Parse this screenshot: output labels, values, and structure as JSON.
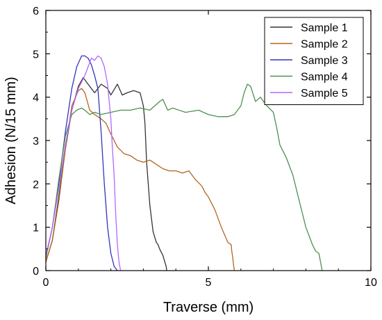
{
  "chart_data": {
    "type": "line",
    "xlabel": "Traverse (mm)",
    "ylabel": "Adhesion (N/15 mm)",
    "xlim": [
      0,
      10
    ],
    "ylim": [
      0,
      6
    ],
    "xticks": [
      0,
      5,
      10
    ],
    "yticks": [
      0,
      1,
      2,
      3,
      4,
      5,
      6
    ],
    "grid": false,
    "legend_position": "top-right",
    "series": [
      {
        "name": "Sample 1",
        "color": "#333333",
        "x": [
          0,
          0.2,
          0.4,
          0.6,
          0.8,
          1.0,
          1.15,
          1.3,
          1.5,
          1.7,
          1.9,
          2.0,
          2.2,
          2.35,
          2.5,
          2.7,
          2.9,
          3.0,
          3.05,
          3.1,
          3.2,
          3.3,
          3.4,
          3.45,
          3.5,
          3.6,
          3.7,
          3.72
        ],
        "y": [
          0.2,
          0.7,
          1.7,
          2.8,
          3.7,
          4.25,
          4.45,
          4.3,
          4.1,
          4.3,
          4.2,
          4.05,
          4.3,
          4.05,
          4.1,
          4.15,
          4.1,
          3.8,
          3.4,
          2.5,
          1.5,
          0.9,
          0.65,
          0.6,
          0.5,
          0.35,
          0.1,
          0.0
        ]
      },
      {
        "name": "Sample 2",
        "color": "#b5651d",
        "x": [
          0,
          0.2,
          0.4,
          0.6,
          0.8,
          1.0,
          1.1,
          1.2,
          1.35,
          1.5,
          1.7,
          1.85,
          2.0,
          2.2,
          2.4,
          2.6,
          2.8,
          3.0,
          3.2,
          3.4,
          3.6,
          3.8,
          4.0,
          4.2,
          4.4,
          4.6,
          4.8,
          4.9,
          5.0,
          5.2,
          5.4,
          5.6,
          5.7,
          5.72,
          5.75,
          5.78,
          5.8
        ],
        "y": [
          0.2,
          0.7,
          1.6,
          2.8,
          3.8,
          4.15,
          4.2,
          4.1,
          3.7,
          3.6,
          3.5,
          3.4,
          3.15,
          2.85,
          2.7,
          2.65,
          2.55,
          2.5,
          2.55,
          2.45,
          2.35,
          2.3,
          2.3,
          2.25,
          2.3,
          2.1,
          1.95,
          1.8,
          1.7,
          1.4,
          1.0,
          0.65,
          0.6,
          0.45,
          0.3,
          0.1,
          0.0
        ]
      },
      {
        "name": "Sample 3",
        "color": "#3333bb",
        "x": [
          0,
          0.2,
          0.4,
          0.6,
          0.8,
          0.95,
          1.1,
          1.2,
          1.3,
          1.4,
          1.5,
          1.6,
          1.7,
          1.8,
          1.9,
          2.0,
          2.1,
          2.15,
          2.2
        ],
        "y": [
          0.3,
          1.0,
          2.0,
          3.2,
          4.2,
          4.7,
          4.95,
          4.95,
          4.9,
          4.75,
          4.5,
          4.2,
          3.2,
          2.0,
          1.0,
          0.4,
          0.1,
          0.05,
          0.0
        ]
      },
      {
        "name": "Sample 4",
        "color": "#4e8f4e",
        "x": [
          0,
          0.2,
          0.4,
          0.6,
          0.8,
          0.95,
          1.1,
          1.2,
          1.35,
          1.5,
          1.7,
          2.0,
          2.3,
          2.6,
          2.9,
          3.2,
          3.5,
          3.6,
          3.75,
          3.9,
          4.3,
          4.7,
          5.0,
          5.3,
          5.6,
          5.8,
          6.0,
          6.1,
          6.2,
          6.3,
          6.45,
          6.6,
          6.8,
          7.0,
          7.1,
          7.2,
          7.4,
          7.6,
          7.8,
          8.0,
          8.2,
          8.3,
          8.4,
          8.45,
          8.5
        ],
        "y": [
          0.3,
          1.0,
          2.1,
          3.1,
          3.6,
          3.7,
          3.75,
          3.7,
          3.6,
          3.65,
          3.6,
          3.65,
          3.7,
          3.7,
          3.75,
          3.7,
          3.9,
          3.95,
          3.7,
          3.75,
          3.65,
          3.7,
          3.6,
          3.55,
          3.55,
          3.6,
          3.8,
          4.1,
          4.3,
          4.25,
          3.9,
          4.0,
          3.8,
          3.65,
          3.3,
          2.9,
          2.6,
          2.2,
          1.6,
          1.0,
          0.6,
          0.45,
          0.4,
          0.2,
          0.0
        ]
      },
      {
        "name": "Sample 5",
        "color": "#b266ff",
        "x": [
          0,
          0.2,
          0.4,
          0.6,
          0.8,
          1.0,
          1.2,
          1.4,
          1.5,
          1.6,
          1.7,
          1.8,
          1.9,
          2.0,
          2.05,
          2.1,
          2.15,
          2.2,
          2.25,
          2.3
        ],
        "y": [
          0.35,
          1.0,
          1.9,
          2.9,
          3.7,
          4.2,
          4.5,
          4.9,
          4.85,
          4.95,
          4.9,
          4.7,
          4.3,
          3.5,
          2.8,
          2.2,
          1.3,
          0.6,
          0.2,
          0.0
        ]
      }
    ]
  }
}
